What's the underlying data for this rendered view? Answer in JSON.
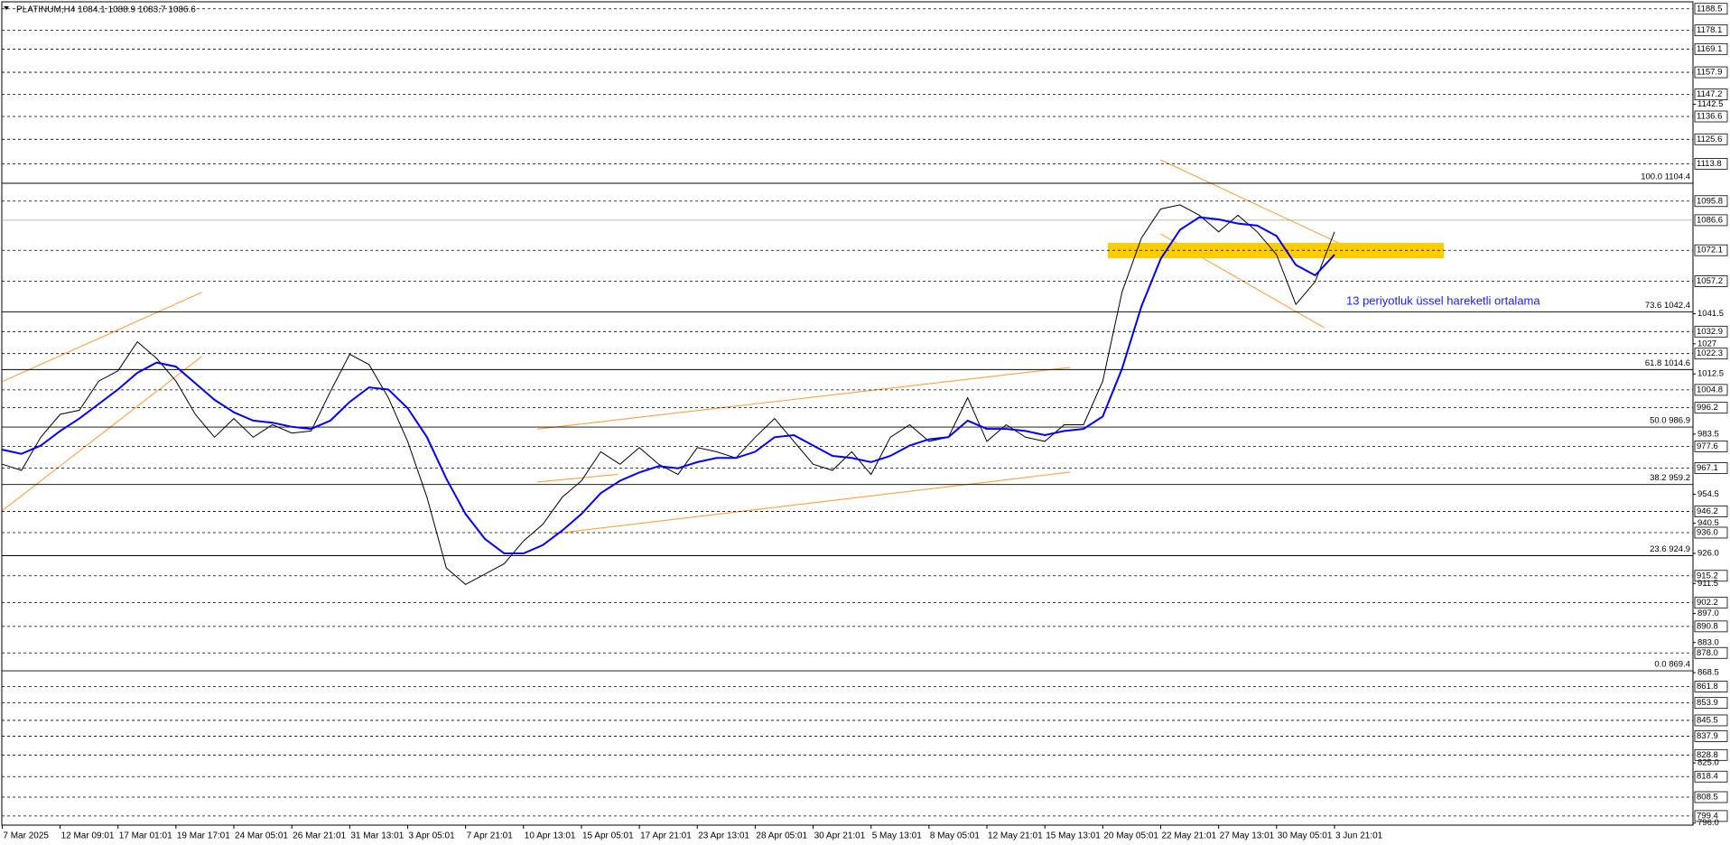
{
  "chart_data": {
    "type": "line",
    "title": "PLATINUM,H4  1084.1 1088.9 1083.7 1086.6",
    "annotation": "13 periyotluk üssel hareketli ortalama",
    "categories": [
      "7 Mar 2025",
      null,
      null,
      "12 Mar 09:01",
      null,
      null,
      "17 Mar 01:01",
      null,
      null,
      "19 Mar 17:01",
      null,
      null,
      "24 Mar 05:01",
      null,
      null,
      "26 Mar 21:01",
      null,
      null,
      "31 Mar 13:01",
      null,
      null,
      "3 Apr 05:01",
      null,
      null,
      "7 Apr 21:01",
      null,
      null,
      "10 Apr 13:01",
      null,
      null,
      "15 Apr 05:01",
      null,
      null,
      "17 Apr 21:01",
      null,
      null,
      "23 Apr 13:01",
      null,
      null,
      "28 Apr 05:01",
      null,
      null,
      "30 Apr 21:01",
      null,
      null,
      "5 May 13:01",
      null,
      null,
      "8 May 05:01",
      null,
      null,
      "12 May 21:01",
      null,
      null,
      "15 May 13:01",
      null,
      null,
      "20 May 05:01",
      null,
      null,
      "22 May 21:01",
      null,
      null,
      "27 May 13:01",
      null,
      null,
      "30 May 05:01",
      null,
      null,
      "3 Jun 21:01"
    ],
    "series": [
      {
        "color": "#000000",
        "values": [
          969,
          966,
          982,
          993,
          995,
          1009,
          1014,
          1028,
          1020,
          1009,
          993,
          982,
          991,
          982,
          988,
          984,
          985,
          1004,
          1022,
          1017,
          1001,
          980,
          953,
          919,
          911,
          916,
          921,
          932,
          940,
          953,
          961,
          975,
          969,
          977,
          969,
          964,
          977,
          975,
          972,
          982,
          991,
          980,
          969,
          966,
          975,
          964,
          982,
          988,
          980,
          982,
          1001,
          980,
          988,
          982,
          980,
          988,
          988,
          1009,
          1052,
          1078,
          1092,
          1094,
          1089,
          1081,
          1089,
          1081,
          1070,
          1046,
          1057,
          1081
        ]
      },
      {
        "color": "#0000ff",
        "values": [
          976,
          974,
          978,
          985,
          991,
          998,
          1005,
          1013,
          1018,
          1016,
          1008,
          1000,
          994,
          990,
          989,
          987,
          986,
          990,
          999,
          1006,
          1005,
          996,
          982,
          962,
          945,
          933,
          926,
          926,
          930,
          937,
          945,
          955,
          961,
          965,
          968,
          967,
          970,
          972,
          972,
          975,
          982,
          983,
          978,
          973,
          972,
          970,
          973,
          978,
          981,
          982,
          990,
          986,
          986,
          985,
          983,
          985,
          986,
          992,
          1015,
          1045,
          1068,
          1082,
          1088,
          1087,
          1085,
          1084,
          1079,
          1065,
          1060,
          1070
        ]
      }
    ],
    "ylim": [
      795.0,
      1191.0
    ],
    "yticks": [
      1142.5,
      1041.5,
      1027,
      {
        "value": 1012.5,
        "label": "1012.5"
      },
      983.5,
      954.5,
      940.5,
      {
        "value": 926,
        "label": "926.0"
      },
      911.5,
      {
        "value": 897,
        "label": "897.0"
      },
      {
        "value": 883,
        "label": "883.0"
      },
      868.5,
      {
        "value": 825,
        "label": "825.0"
      },
      {
        "value": 796,
        "label": "796.0"
      }
    ],
    "levels": [
      1188.5,
      1178.1,
      1169.1,
      1157.9,
      1147.2,
      1136.6,
      1125.6,
      1113.8,
      1095.8,
      1086.6,
      1072.1,
      1057.2,
      1032.9,
      1022.3,
      1004.8,
      996.2,
      977.6,
      967.1,
      946.2,
      {
        "value": 936,
        "label": "936.0"
      },
      915.2,
      902.2,
      890.8,
      {
        "value": 878,
        "label": "878.0"
      },
      861.8,
      853.9,
      845.5,
      837.9,
      828.8,
      818.4,
      808.5,
      799.4
    ],
    "fib_levels": [
      {
        "value": 1104.4,
        "label": "100.0 1104.4"
      },
      {
        "value": 1042.4,
        "label": "73.6 1042.4"
      },
      {
        "value": 1014.6,
        "label": "61.8 1014.6"
      },
      {
        "value": 986.9,
        "label": "50.0 986.9"
      },
      {
        "value": 959.2,
        "label": "38.2 959.2"
      },
      {
        "value": 924.9,
        "label": "23.6 924.9"
      },
      {
        "value": 869.4,
        "label": "0.0 869.4"
      }
    ]
  }
}
